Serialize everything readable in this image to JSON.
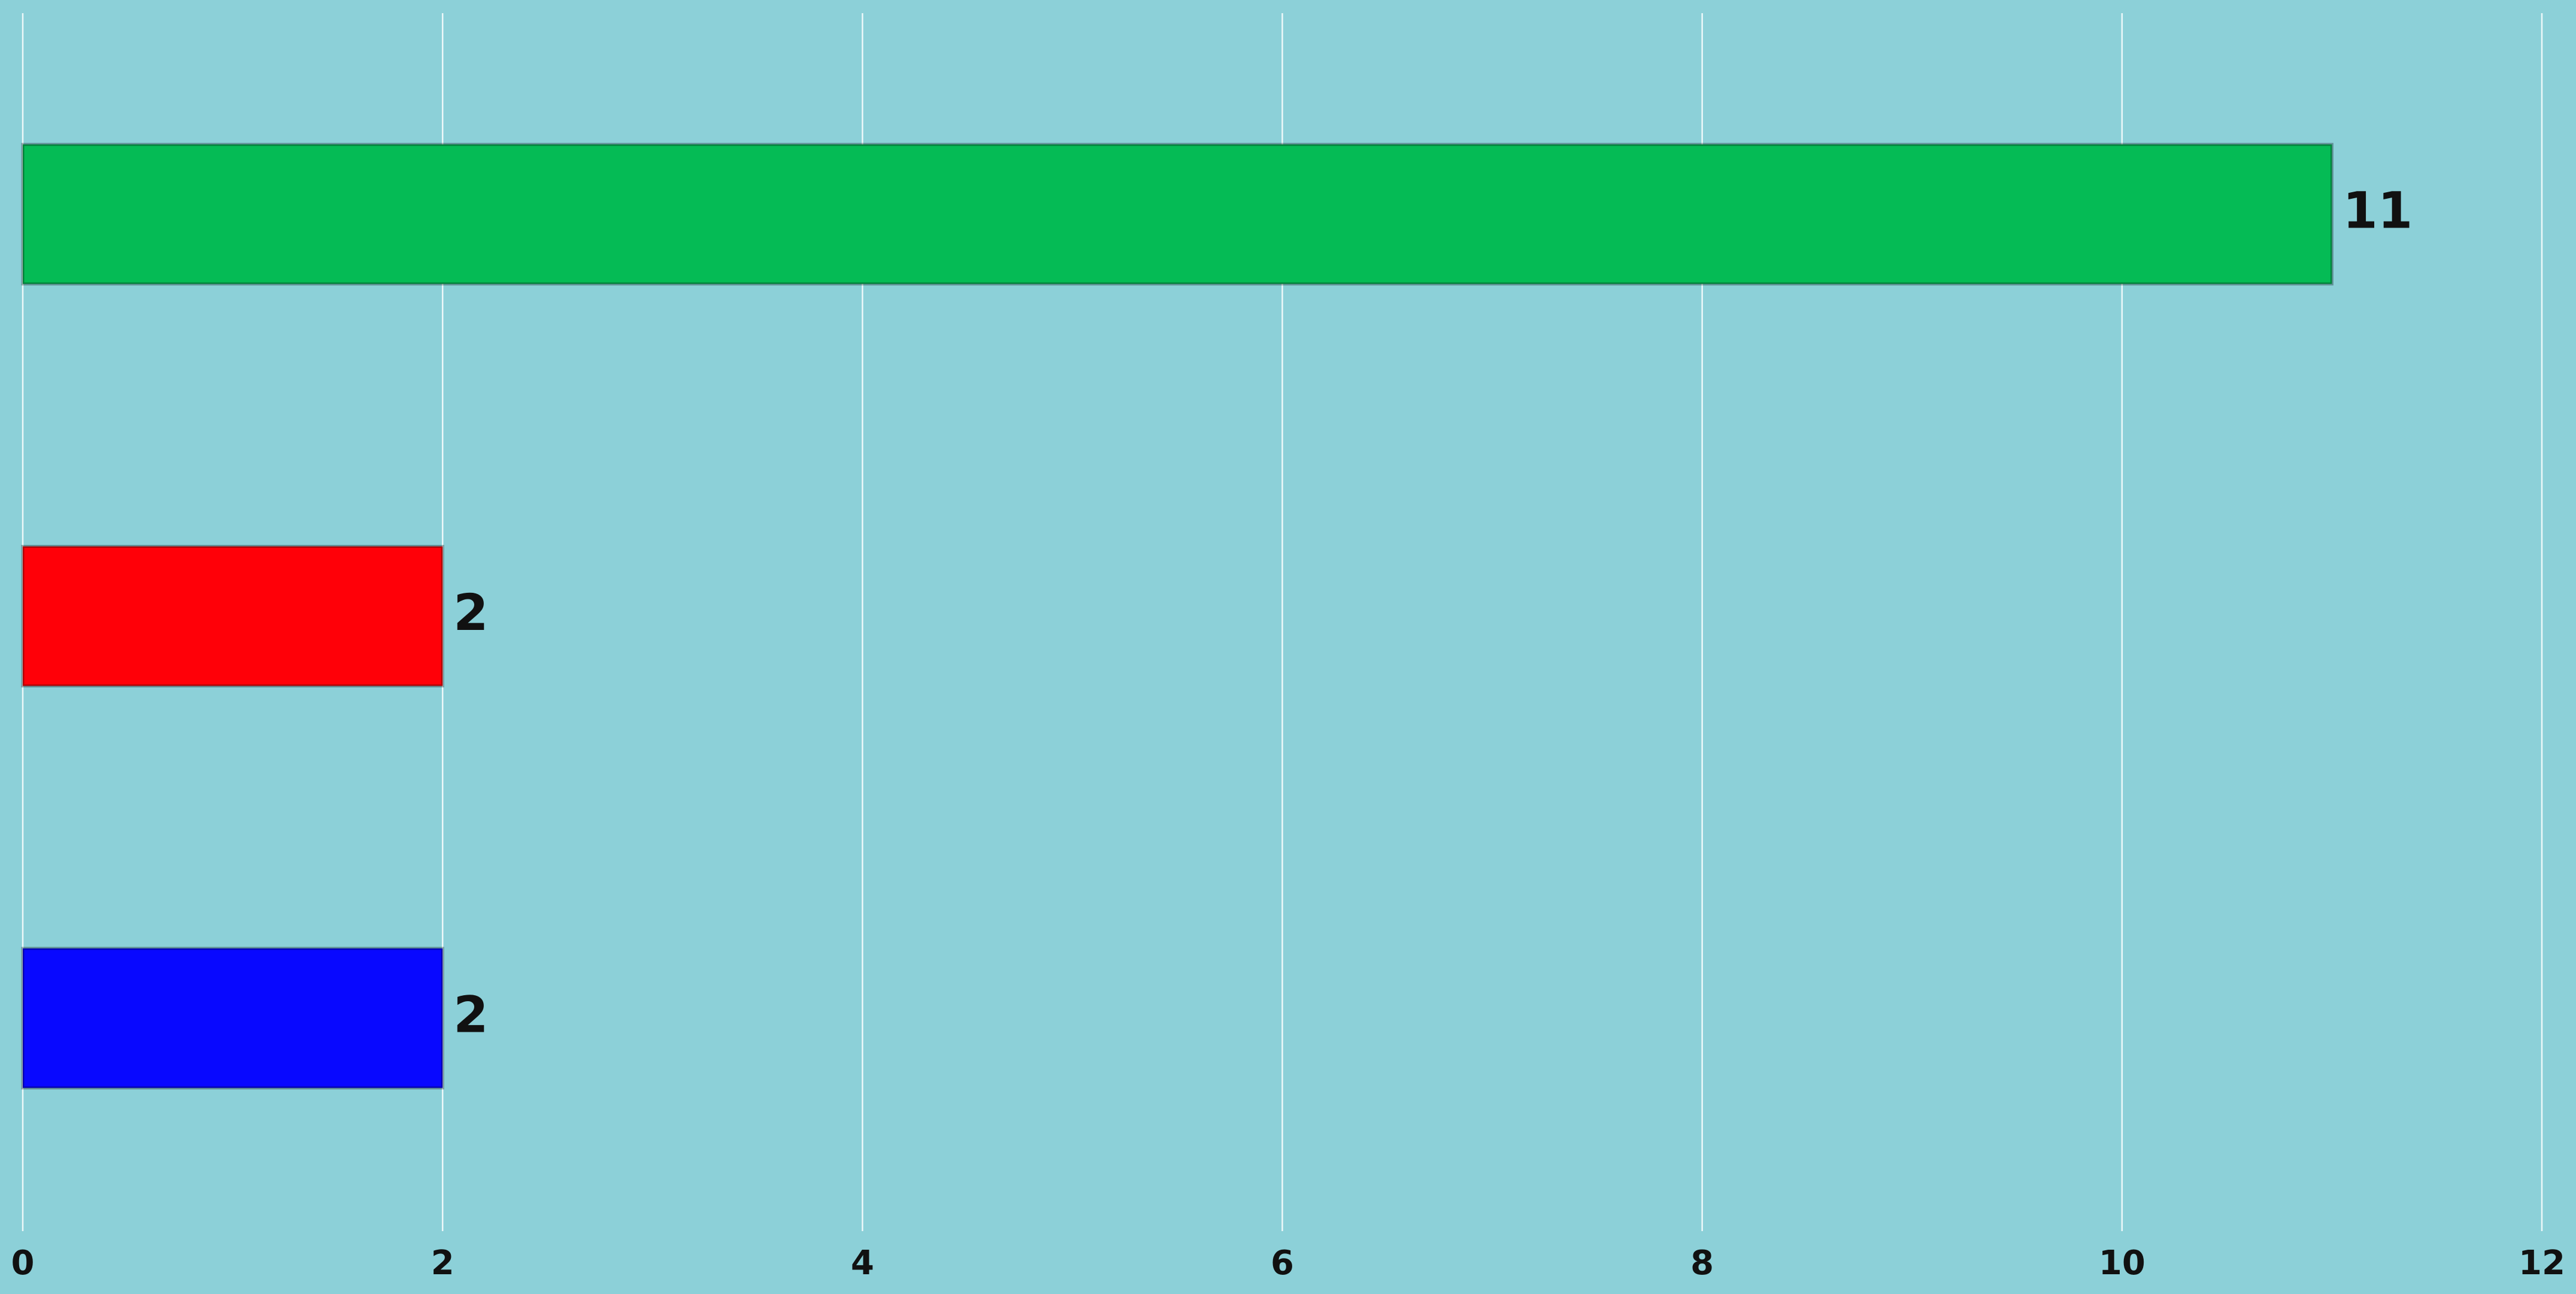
{
  "chart_data": {
    "type": "hbar",
    "categories": [
      null,
      null,
      null
    ],
    "values": [
      11,
      2,
      2
    ],
    "colors": [
      "#05bb55",
      "#ff0008",
      "#0808ff"
    ],
    "xlim": [
      0,
      12
    ],
    "xticks": [
      0,
      2,
      4,
      6,
      8,
      10,
      12
    ],
    "grid": true
  }
}
